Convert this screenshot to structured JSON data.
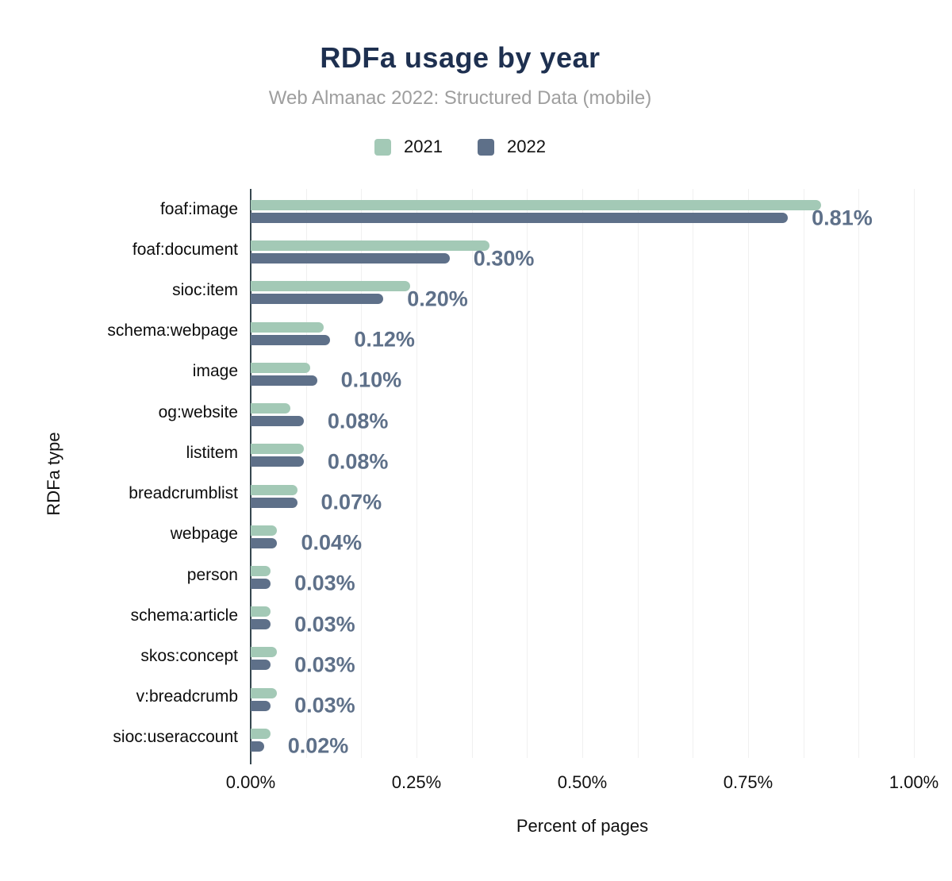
{
  "header": {
    "title": "RDFa usage by year",
    "subtitle": "Web Almanac 2022: Structured Data (mobile)"
  },
  "legend": {
    "items": [
      {
        "label": "2021",
        "color": "#a3c9b6"
      },
      {
        "label": "2022",
        "color": "#5e7089"
      }
    ]
  },
  "axes": {
    "x_title": "Percent of pages",
    "y_title": "RDFa type"
  },
  "chart_data": {
    "type": "bar",
    "orientation": "horizontal",
    "title": "RDFa usage by year",
    "subtitle": "Web Almanac 2022: Structured Data (mobile)",
    "xlabel": "Percent of pages",
    "ylabel": "RDFa type",
    "xlim": [
      0,
      1.0
    ],
    "x_tick_values": [
      0,
      0.25,
      0.5,
      0.75,
      1.0
    ],
    "x_tick_labels": [
      "0.00%",
      "0.25%",
      "0.50%",
      "0.75%",
      "1.00%"
    ],
    "grid": {
      "vertical": true,
      "step": 0.0833,
      "color": "#f0f0f0"
    },
    "legend_position": "top",
    "background": "#ffffff",
    "data_label_color": "#5e7089",
    "categories": [
      "foaf:image",
      "foaf:document",
      "sioc:item",
      "schema:webpage",
      "image",
      "og:website",
      "listitem",
      "breadcrumblist",
      "webpage",
      "person",
      "schema:article",
      "skos:concept",
      "v:breadcrumb",
      "sioc:useraccount"
    ],
    "series": [
      {
        "name": "2021",
        "color": "#a3c9b6",
        "values": [
          0.86,
          0.36,
          0.24,
          0.11,
          0.09,
          0.06,
          0.08,
          0.07,
          0.04,
          0.03,
          0.03,
          0.04,
          0.04,
          0.03
        ]
      },
      {
        "name": "2022",
        "color": "#5e7089",
        "values": [
          0.81,
          0.3,
          0.2,
          0.12,
          0.1,
          0.08,
          0.08,
          0.07,
          0.04,
          0.03,
          0.03,
          0.03,
          0.03,
          0.02
        ],
        "data_labels": [
          "0.81%",
          "0.30%",
          "0.20%",
          "0.12%",
          "0.10%",
          "0.08%",
          "0.08%",
          "0.07%",
          "0.04%",
          "0.03%",
          "0.03%",
          "0.03%",
          "0.03%",
          "0.02%"
        ]
      }
    ]
  }
}
